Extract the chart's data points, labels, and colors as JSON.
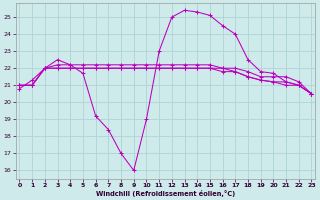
{
  "bg_color": "#ceeaeb",
  "grid_color": "#add4d5",
  "line_color": "#bb00bb",
  "xlabel": "Windchill (Refroidissement éolien,°C)",
  "ylabel_ticks": [
    16,
    17,
    18,
    19,
    20,
    21,
    22,
    23,
    24,
    25
  ],
  "xlim": [
    -0.3,
    23.3
  ],
  "ylim": [
    15.5,
    25.8
  ],
  "xticks": [
    0,
    1,
    2,
    3,
    4,
    5,
    6,
    7,
    8,
    9,
    10,
    11,
    12,
    13,
    14,
    15,
    16,
    17,
    18,
    19,
    20,
    21,
    22,
    23
  ],
  "series": [
    {
      "x": [
        0,
        1,
        2,
        3,
        4,
        5,
        6,
        7,
        8,
        9,
        10,
        11,
        12,
        13,
        14,
        15,
        16,
        17,
        18,
        19,
        20,
        21,
        22,
        23
      ],
      "y": [
        20.8,
        21.3,
        22.0,
        22.5,
        22.2,
        21.7,
        19.2,
        18.4,
        17.0,
        16.0,
        19.0,
        23.0,
        25.0,
        25.4,
        25.3,
        25.1,
        24.5,
        24.0,
        22.5,
        21.8,
        21.7,
        21.2,
        21.0,
        20.5
      ]
    },
    {
      "x": [
        0,
        1,
        2,
        3,
        4,
        5,
        6,
        7,
        8,
        9,
        10,
        11,
        12,
        13,
        14,
        15,
        16,
        17,
        18,
        19,
        20,
        21,
        22,
        23
      ],
      "y": [
        21.0,
        21.0,
        22.0,
        22.2,
        22.2,
        22.2,
        22.2,
        22.2,
        22.2,
        22.2,
        22.2,
        22.2,
        22.2,
        22.2,
        22.2,
        22.2,
        22.0,
        22.0,
        21.8,
        21.5,
        21.5,
        21.5,
        21.2,
        20.5
      ]
    },
    {
      "x": [
        0,
        1,
        2,
        3,
        4,
        5,
        6,
        7,
        8,
        9,
        10,
        11,
        12,
        13,
        14,
        15,
        16,
        17,
        18,
        19,
        20,
        21,
        22,
        23
      ],
      "y": [
        21.0,
        21.0,
        22.0,
        22.0,
        22.0,
        22.0,
        22.0,
        22.0,
        22.0,
        22.0,
        22.0,
        22.0,
        22.0,
        22.0,
        22.0,
        22.0,
        22.0,
        21.8,
        21.5,
        21.3,
        21.2,
        21.2,
        21.0,
        20.5
      ]
    },
    {
      "x": [
        0,
        1,
        2,
        3,
        4,
        5,
        6,
        7,
        8,
        9,
        10,
        11,
        12,
        13,
        14,
        15,
        16,
        17,
        18,
        19,
        20,
        21,
        22,
        23
      ],
      "y": [
        21.0,
        21.0,
        22.0,
        22.0,
        22.0,
        22.0,
        22.0,
        22.0,
        22.0,
        22.0,
        22.0,
        22.0,
        22.0,
        22.0,
        22.0,
        22.0,
        21.8,
        21.8,
        21.5,
        21.3,
        21.2,
        21.0,
        21.0,
        20.5
      ]
    }
  ]
}
